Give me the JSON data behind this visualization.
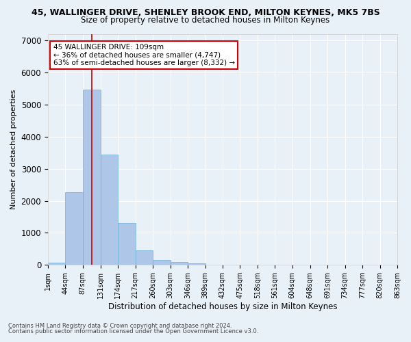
{
  "title1": "45, WALLINGER DRIVE, SHENLEY BROOK END, MILTON KEYNES, MK5 7BS",
  "title2": "Size of property relative to detached houses in Milton Keynes",
  "xlabel": "Distribution of detached houses by size in Milton Keynes",
  "ylabel": "Number of detached properties",
  "bar_values": [
    75,
    2270,
    5470,
    3440,
    1310,
    460,
    155,
    85,
    55,
    0,
    0,
    0,
    0,
    0,
    0,
    0,
    0,
    0,
    0,
    0
  ],
  "bin_edges": [
    1,
    44,
    87,
    131,
    174,
    217,
    260,
    303,
    346,
    389,
    432,
    475,
    518,
    561,
    604,
    648,
    691,
    734,
    777,
    820,
    863
  ],
  "tick_labels": [
    "1sqm",
    "44sqm",
    "87sqm",
    "131sqm",
    "174sqm",
    "217sqm",
    "260sqm",
    "303sqm",
    "346sqm",
    "389sqm",
    "432sqm",
    "475sqm",
    "518sqm",
    "561sqm",
    "604sqm",
    "648sqm",
    "691sqm",
    "734sqm",
    "777sqm",
    "820sqm",
    "863sqm"
  ],
  "bar_color": "#aec6e8",
  "bar_edge_color": "#6baed6",
  "vline_x": 109,
  "vline_color": "#cc0000",
  "annotation_text": "45 WALLINGER DRIVE: 109sqm\n← 36% of detached houses are smaller (4,747)\n63% of semi-detached houses are larger (8,332) →",
  "annotation_box_color": "#ffffff",
  "annotation_border_color": "#cc0000",
  "ylim": [
    0,
    7200
  ],
  "yticks": [
    0,
    1000,
    2000,
    3000,
    4000,
    5000,
    6000,
    7000
  ],
  "bg_color": "#e8f0f8",
  "footer1": "Contains HM Land Registry data © Crown copyright and database right 2024.",
  "footer2": "Contains public sector information licensed under the Open Government Licence v3.0.",
  "title1_fontsize": 9,
  "title2_fontsize": 8.5,
  "grid_color": "#ffffff",
  "tick_fontsize": 7,
  "ylabel_fontsize": 8,
  "xlabel_fontsize": 8.5,
  "annot_fontsize": 7.5
}
